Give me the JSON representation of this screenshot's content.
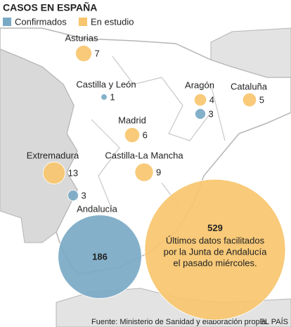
{
  "header": {
    "title": "CASOS EN ESPAÑA"
  },
  "legend": [
    {
      "name": "Confirmados",
      "color": "#7aa9c6"
    },
    {
      "name": "En estudio",
      "color": "#f7c56e"
    }
  ],
  "regions": [
    {
      "name": "Asturias",
      "en_estudio": 7
    },
    {
      "name": "Castilla y León",
      "confirmados": 1
    },
    {
      "name": "Aragón",
      "en_estudio": 4,
      "confirmados": 3
    },
    {
      "name": "Cataluña",
      "en_estudio": 5
    },
    {
      "name": "Madrid",
      "en_estudio": 6
    },
    {
      "name": "Extremadura",
      "en_estudio": 13,
      "confirmados": 3
    },
    {
      "name": "Castilla-La Mancha",
      "en_estudio": 9
    },
    {
      "name": "Andalucía",
      "confirmados": 186,
      "en_estudio": 529,
      "note": [
        "Últimos datos facilitados",
        "por la Junta de Andalucía",
        "el pasado miércoles."
      ]
    }
  ],
  "footer": {
    "source": "Fuente: Ministerio de Sanidad y elaboración propia.",
    "credit": "EL PAÍS"
  }
}
